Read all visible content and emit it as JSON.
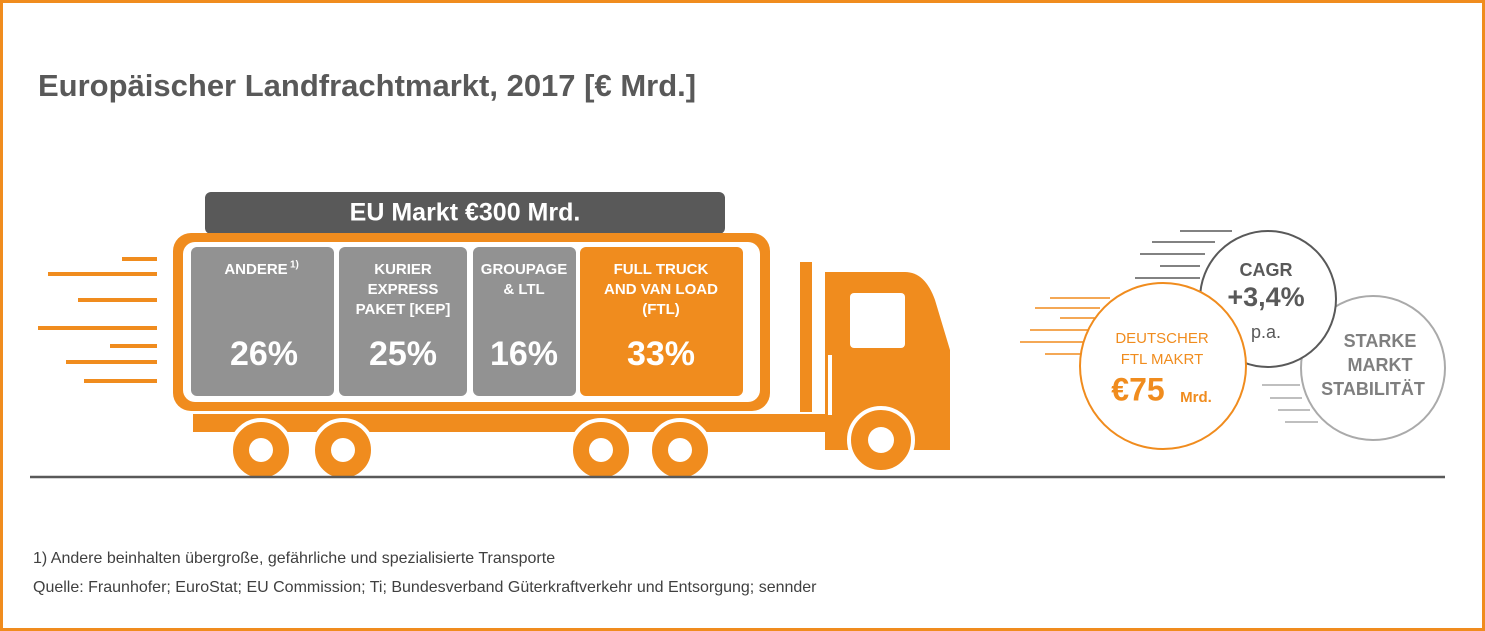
{
  "header": {
    "title": "Europäischer Landfrachtmarkt, 2017 [€ Mrd.]"
  },
  "banner": "EU Markt  €300 Mrd.",
  "segments": [
    {
      "lines": [
        "ANDERE"
      ],
      "sup": "1)",
      "value": "26%"
    },
    {
      "lines": [
        "KURIER",
        "EXPRESS",
        "PAKET [KEP]"
      ],
      "value": "25%"
    },
    {
      "lines": [
        "GROUPAGE",
        "& LTL"
      ],
      "value": "16%"
    },
    {
      "lines": [
        "FULL TRUCK",
        "AND VAN LOAD",
        "(FTL)"
      ],
      "value": "33%"
    }
  ],
  "circles": {
    "cagr": {
      "label": "CAGR",
      "value": "+3,4%",
      "unit": "p.a."
    },
    "stability": {
      "lines": [
        "STARKE",
        "MARKT",
        "STABILITÄT"
      ]
    },
    "ftl": {
      "lines": [
        "DEUTSCHER",
        "FTL MAKRT"
      ],
      "value": "€75",
      "unit": "Mrd."
    }
  },
  "footnotes": [
    "1) Andere beinhalten übergroße, gefährliche und spezialisierte Transporte",
    "Quelle: Fraunhofer; EuroStat; EU Commission; Ti; Bundesverband Güterkraftverkehr und Entsorgung; sennder"
  ]
}
